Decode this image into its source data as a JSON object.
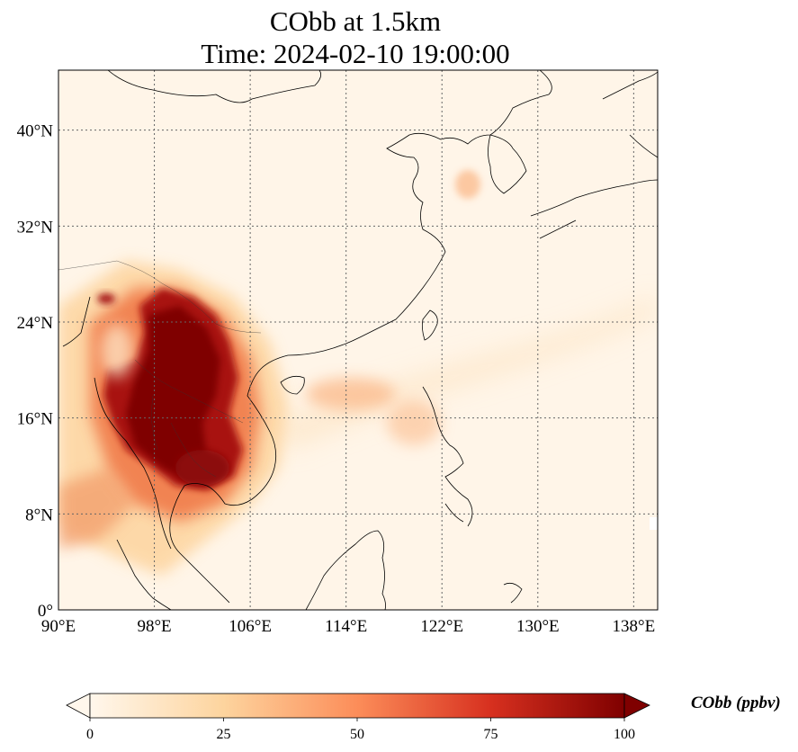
{
  "title": {
    "line1": "CObb at 1.5km",
    "line2": "Time: 2024-02-10 19:00:00"
  },
  "map": {
    "lon_range": [
      90,
      140
    ],
    "lat_range": [
      0,
      45
    ],
    "lon_ticks": [
      {
        "value": 90,
        "label": "90°E"
      },
      {
        "value": 98,
        "label": "98°E"
      },
      {
        "value": 106,
        "label": "106°E"
      },
      {
        "value": 114,
        "label": "114°E"
      },
      {
        "value": 122,
        "label": "122°E"
      },
      {
        "value": 130,
        "label": "130°E"
      },
      {
        "value": 138,
        "label": "138°E"
      }
    ],
    "lat_ticks": [
      {
        "value": 0,
        "label": "0°"
      },
      {
        "value": 8,
        "label": "8°N"
      },
      {
        "value": 16,
        "label": "16°N"
      },
      {
        "value": 24,
        "label": "24°N"
      },
      {
        "value": 32,
        "label": "32°N"
      },
      {
        "value": 40,
        "label": "40°N"
      }
    ],
    "gridlines": "dotted",
    "colormap": "OrRd",
    "background_color": "#fff5e8"
  },
  "colorbar": {
    "label": "CObb (ppbv)",
    "min": 0,
    "max": 100,
    "extend": "both",
    "ticks": [
      {
        "value": 0,
        "label": "0"
      },
      {
        "value": 25,
        "label": "25"
      },
      {
        "value": 50,
        "label": "50"
      },
      {
        "value": 75,
        "label": "75"
      },
      {
        "value": 100,
        "label": "100"
      }
    ],
    "colors": [
      "#fff7ec",
      "#fdd49e",
      "#fc8d59",
      "#d7301f",
      "#7f0000"
    ]
  }
}
